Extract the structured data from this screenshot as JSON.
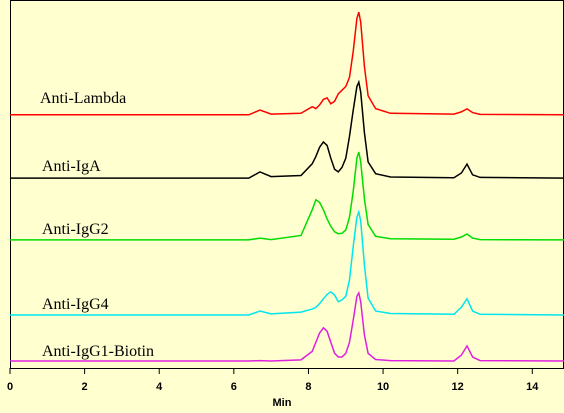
{
  "chart_data": {
    "type": "line",
    "x_label": "Min",
    "x": [
      0,
      6.4,
      6.7,
      7.0,
      7.8,
      8.1,
      8.2,
      8.3,
      8.4,
      8.5,
      8.6,
      8.7,
      8.8,
      8.9,
      9.0,
      9.1,
      9.2,
      9.3,
      9.35,
      9.4,
      9.5,
      9.6,
      9.8,
      10.2,
      11.9,
      12.1,
      12.25,
      12.4,
      12.6,
      14.85
    ],
    "series": [
      {
        "name": "Anti-Lambda",
        "color": "#ff0000",
        "values": [
          68.8,
          68.8,
          70.1,
          69.0,
          69.2,
          71.0,
          70.5,
          71.5,
          73.0,
          73.4,
          71.8,
          72.5,
          74.5,
          75.5,
          76.5,
          79,
          86,
          95,
          96.7,
          94,
          82,
          74,
          70.5,
          69.2,
          69.0,
          69.6,
          70.4,
          69.4,
          68.9,
          68.8
        ]
      },
      {
        "name": "Anti-IgA",
        "color": "#000000",
        "values": [
          51.6,
          51.6,
          53.3,
          52.0,
          52.3,
          55.5,
          57.5,
          60,
          61.4,
          60.5,
          57,
          54,
          53.3,
          54.5,
          57,
          63,
          70,
          76.5,
          77.7,
          75,
          64,
          56,
          52.8,
          51.9,
          51.7,
          53,
          55.4,
          52.5,
          51.8,
          51.6
        ]
      },
      {
        "name": "Anti-IgG2",
        "color": "#00dd00",
        "values": [
          34.8,
          34.8,
          35.3,
          34.9,
          36,
          43,
          45.7,
          45,
          43,
          40.5,
          38.5,
          37,
          36.5,
          36.6,
          37.5,
          41,
          48,
          57,
          58.7,
          56,
          46,
          39,
          35.8,
          35.1,
          35.0,
          35.6,
          36.4,
          35.3,
          34.9,
          34.8
        ]
      },
      {
        "name": "Anti-IgG4",
        "color": "#00e5ee",
        "values": [
          14.4,
          14.4,
          15.5,
          14.7,
          15.2,
          16,
          16.5,
          17.5,
          18.8,
          20,
          20.7,
          19.8,
          18,
          18.5,
          19.5,
          24,
          33,
          41,
          42.4,
          40,
          28,
          19,
          15.5,
          14.8,
          14.6,
          16.5,
          18.8,
          15.5,
          14.6,
          14.4
        ]
      },
      {
        "name": "Anti-IgG1-Biotin",
        "color": "#e020e0",
        "values": [
          1.9,
          1.9,
          2.0,
          1.9,
          2.2,
          4.5,
          7,
          9.5,
          10.9,
          10,
          7,
          4,
          3,
          3,
          4,
          7,
          13,
          19.5,
          20.4,
          18,
          9,
          4,
          2.3,
          2.0,
          1.9,
          3.5,
          6.0,
          3,
          2,
          1.9
        ]
      }
    ],
    "xlim": [
      0,
      14.85
    ],
    "xticks": [
      0,
      2,
      4,
      6,
      8,
      10,
      12,
      14
    ],
    "ylim": [
      0,
      100
    ]
  }
}
